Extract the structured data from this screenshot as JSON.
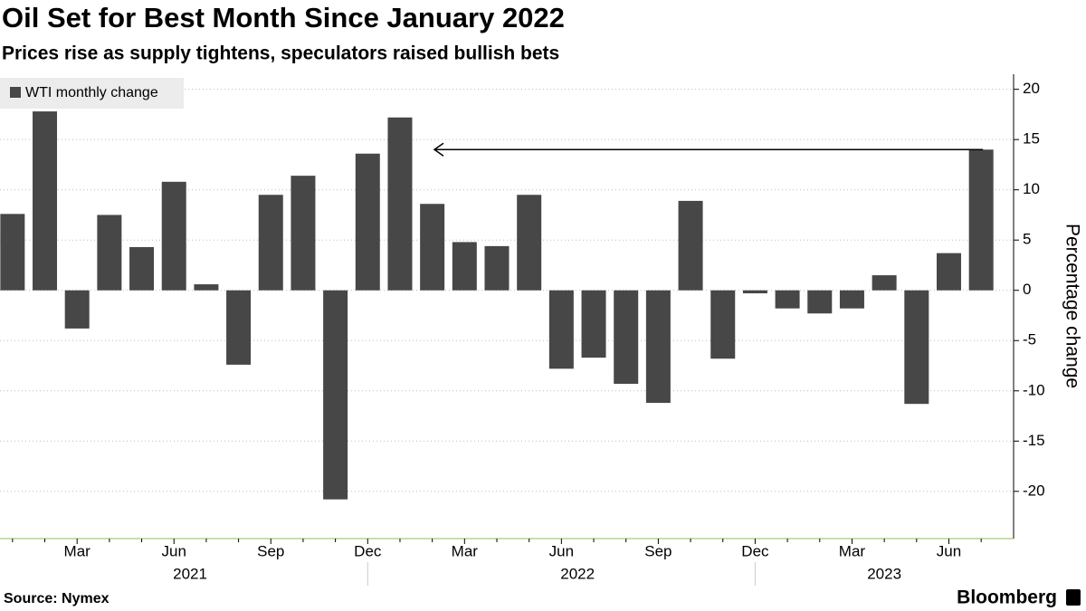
{
  "chart_data": {
    "type": "bar",
    "title": "Oil Set for Best Month Since January 2022",
    "subtitle": "Prices rise as supply tightens, speculators raised bullish bets",
    "source": "Source: Nymex",
    "brand": "Bloomberg",
    "y_label": "Percentage change",
    "categories": [
      null,
      null,
      "Mar",
      null,
      null,
      "Jun",
      null,
      null,
      "Sep",
      null,
      null,
      "Dec",
      null,
      null,
      "Mar",
      null,
      null,
      "Jun",
      null,
      null,
      "Sep",
      null,
      null,
      "Dec",
      null,
      null,
      "Mar",
      null,
      null,
      "Jun",
      null
    ],
    "x_groups": [
      {
        "label": "2021",
        "categories": 12
      },
      {
        "label": "2022",
        "categories": 12
      },
      {
        "label": "2023",
        "categories": 7
      }
    ],
    "series": [
      {
        "name": "WTI monthly change",
        "color": "#474747",
        "values": [
          7.6,
          17.8,
          -3.8,
          7.5,
          4.3,
          10.8,
          0.6,
          -7.4,
          9.5,
          11.4,
          -20.8,
          13.6,
          17.2,
          8.6,
          4.8,
          4.4,
          9.5,
          -7.8,
          -6.7,
          -9.3,
          -11.2,
          8.9,
          -6.8,
          -0.3,
          -1.8,
          -2.3,
          -1.8,
          1.5,
          -11.3,
          3.7,
          14.0
        ]
      }
    ],
    "ylim": [
      -24.7,
      21.5
    ],
    "yticks": [
      -20,
      -15,
      -10,
      -5,
      0,
      5,
      10,
      15,
      20
    ],
    "grid": true,
    "legend": "top-left"
  }
}
